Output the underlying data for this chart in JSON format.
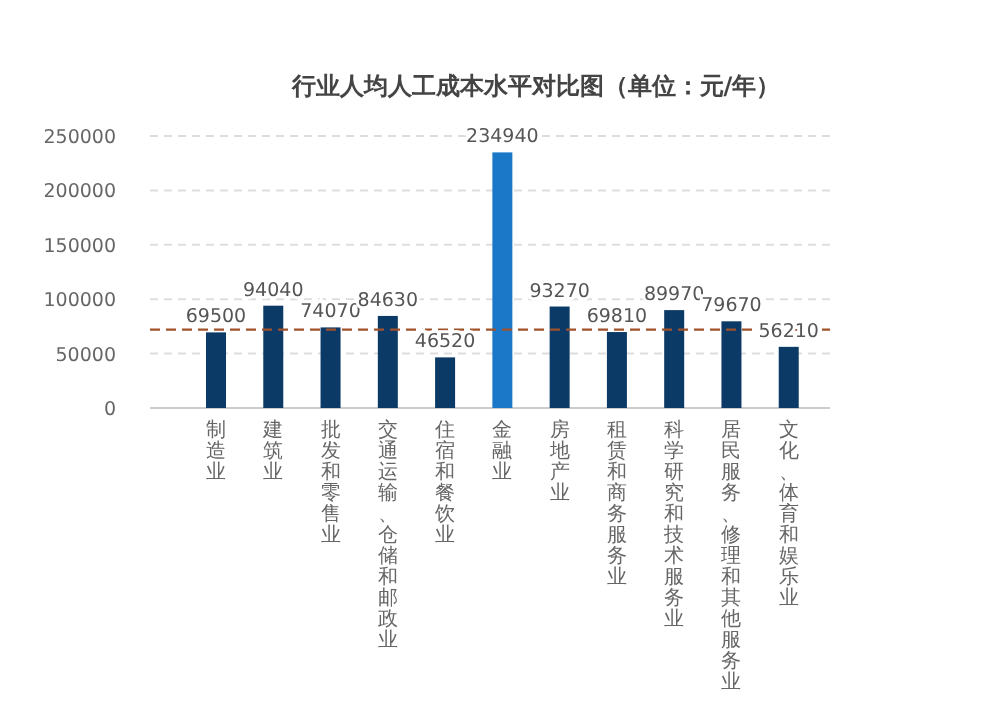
{
  "chart_data": {
    "type": "bar",
    "title": "行业人均人工成本水平对比图（单位：元/年）",
    "categories": [
      "制造业",
      "建筑业",
      "批发和零售业",
      "交通运输、仓储和邮政业",
      "住宿和餐饮业",
      "金融业",
      "房地产业",
      "租赁和商务服务业",
      "科学研究和技术服务业",
      "居民服务、修理和其他服务业",
      "文化、体育和娱乐业"
    ],
    "values": [
      69500,
      94040,
      74070,
      84630,
      46520,
      234940,
      93270,
      69810,
      89970,
      79670,
      56210
    ],
    "colors": [
      "#0b3a66",
      "#0b3a66",
      "#0b3a66",
      "#0b3a66",
      "#0b3a66",
      "#1b78c8",
      "#0b3a66",
      "#0b3a66",
      "#0b3a66",
      "#0b3a66",
      "#0b3a66"
    ],
    "data_labels": true,
    "ylim": [
      0,
      250000
    ],
    "yticks": [
      0,
      50000,
      100000,
      150000,
      200000,
      250000
    ],
    "grid": "y",
    "ref_lines": [
      {
        "axis": "y",
        "value": 72000,
        "color": "#a0522d",
        "line_style": "dashed"
      }
    ]
  }
}
